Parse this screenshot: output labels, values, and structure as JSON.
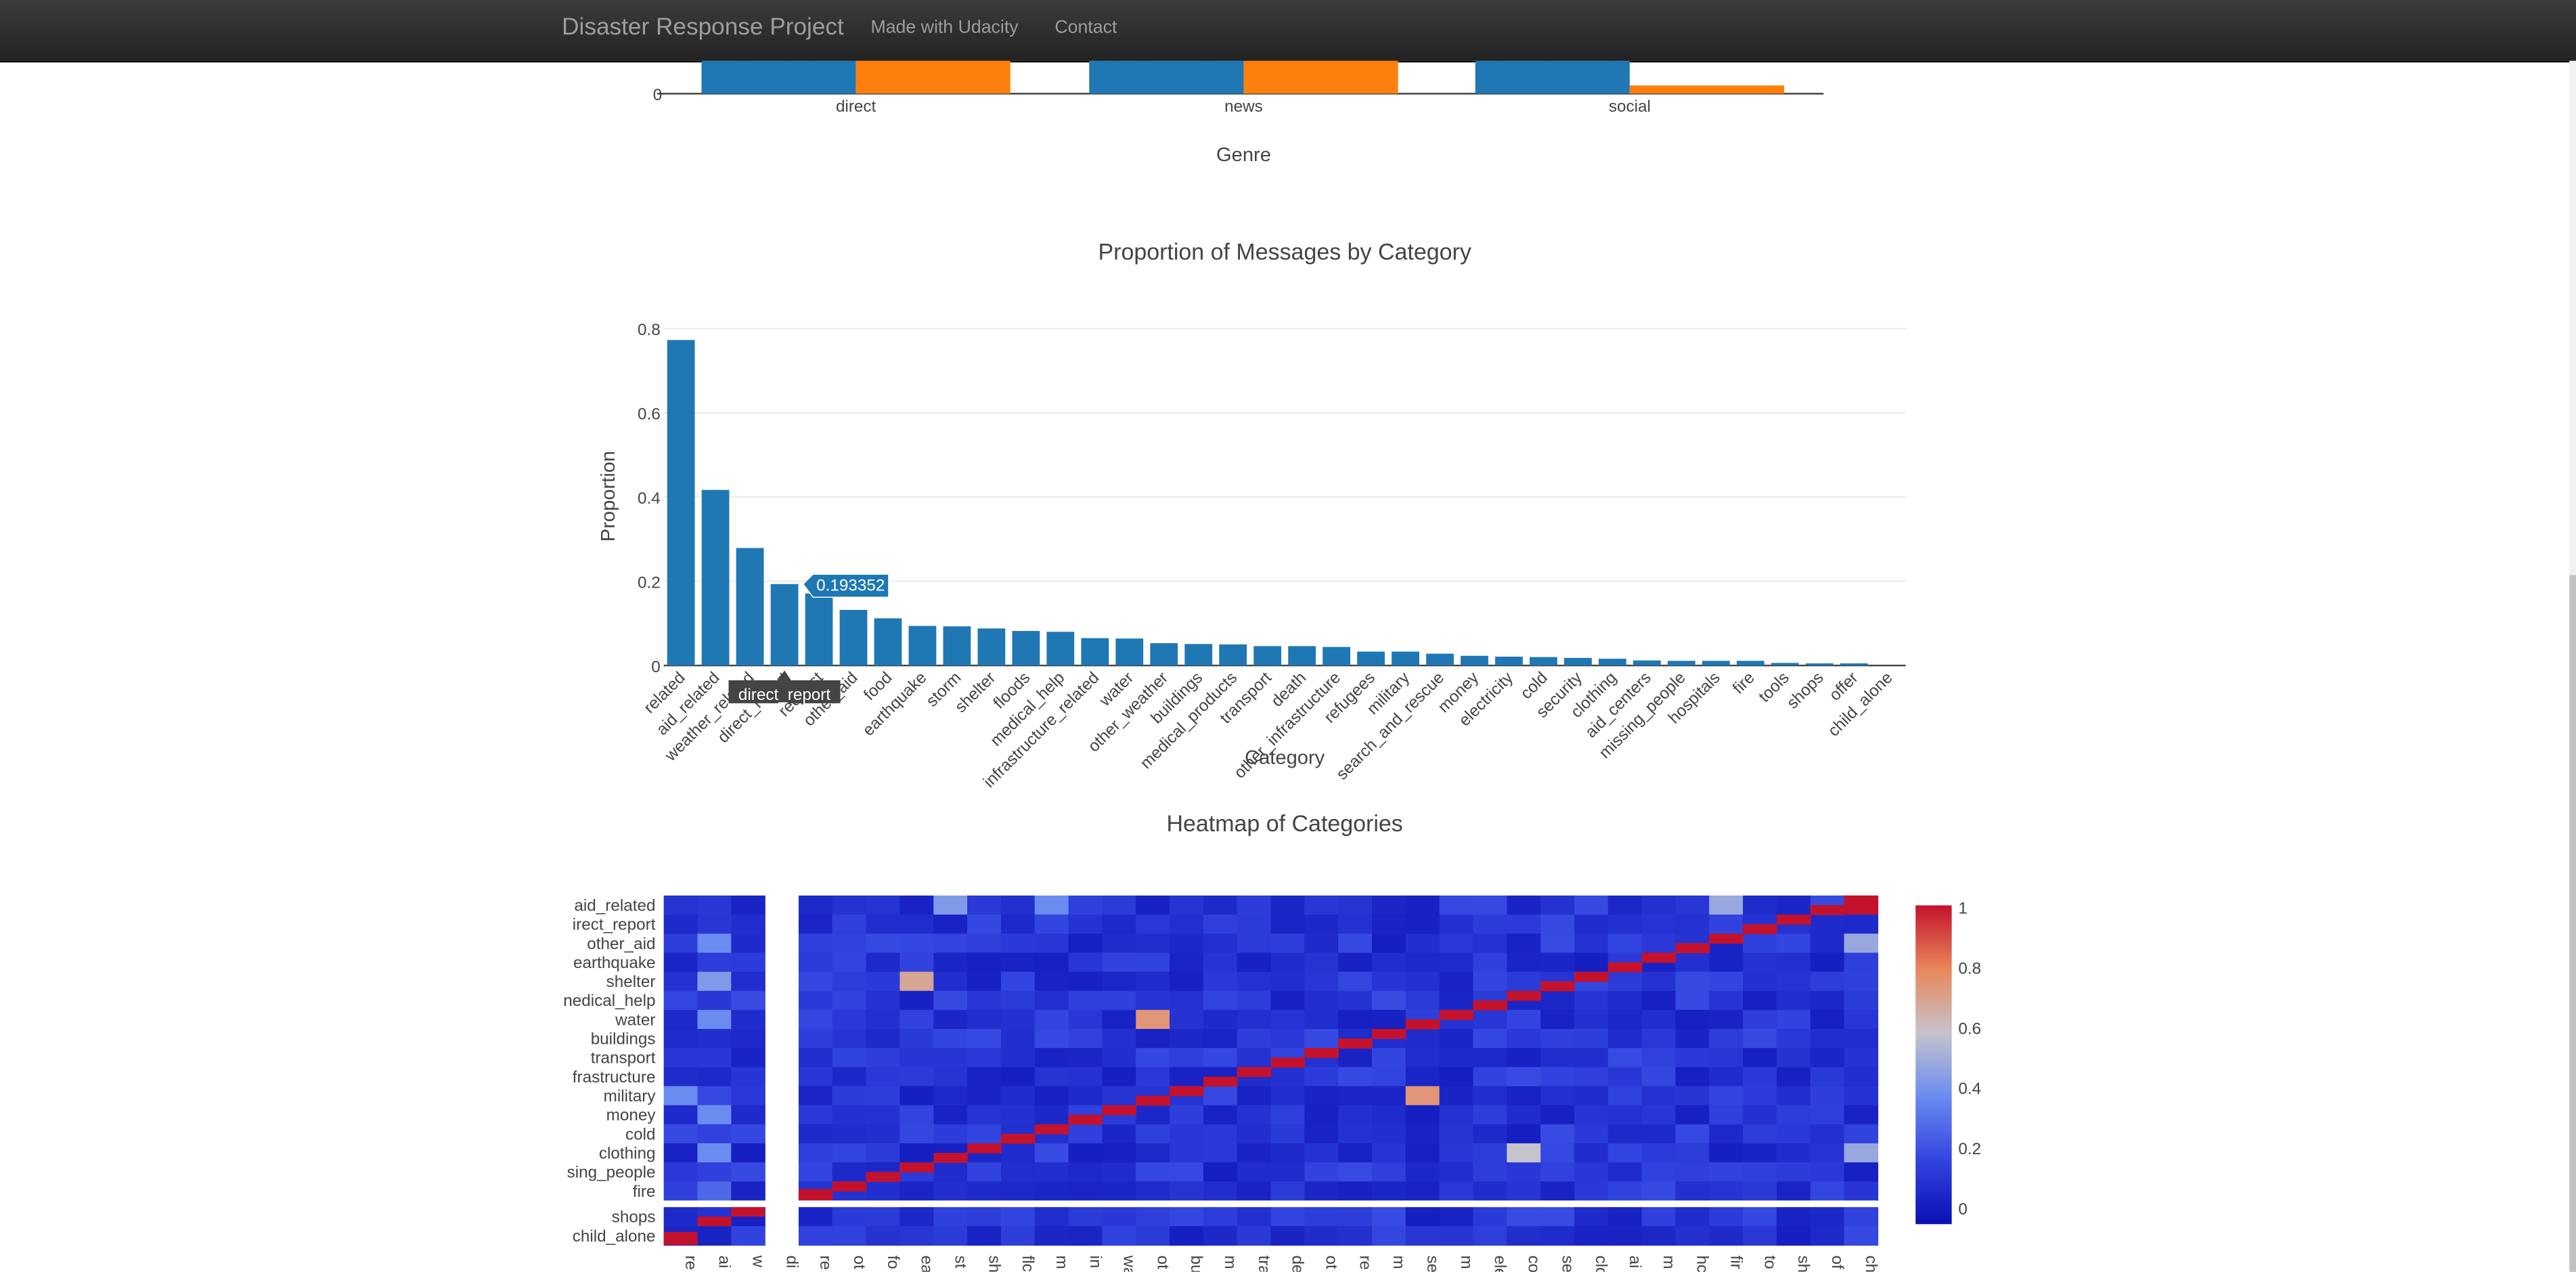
{
  "navbar": {
    "brand": "Disaster Response Project",
    "links": [
      "Made with Udacity",
      "Contact"
    ]
  },
  "chart_data": [
    {
      "type": "bar",
      "categories": [
        "direct",
        "news",
        "social"
      ],
      "xlabel": "Genre",
      "series": [
        {
          "color": "#1f77b4"
        },
        {
          "color": "#ff7f0e",
          "values_note_visible_only_social": ""
        }
      ],
      "y_tick_labels": [
        "0"
      ],
      "partial_view": true
    },
    {
      "type": "bar",
      "title": "Proportion of Messages by Category",
      "xlabel": "Category",
      "ylabel": "Proportion",
      "ylim": [
        0,
        0.8
      ],
      "yticks": [
        0,
        0.2,
        0.4,
        0.6,
        0.8
      ],
      "ytick_labels": [
        "0",
        "0.2",
        "0.4",
        "0.6",
        "0.8"
      ],
      "color": "#1f77b4",
      "categories": [
        "related",
        "aid_related",
        "weather_related",
        "direct_report",
        "request",
        "other_aid",
        "food",
        "earthquake",
        "storm",
        "shelter",
        "floods",
        "medical_help",
        "infrastructure_related",
        "water",
        "other_weather",
        "buildings",
        "medical_products",
        "transport",
        "death",
        "other_infrastructure",
        "refugees",
        "military",
        "search_and_rescue",
        "money",
        "electricity",
        "cold",
        "security",
        "clothing",
        "aid_centers",
        "missing_people",
        "hospitals",
        "fire",
        "tools",
        "shops",
        "offer",
        "child_alone"
      ],
      "tick_labels": [
        "related",
        "aid_related",
        "weather_related",
        "direct_report",
        "request",
        "other_aid",
        "food",
        "earthquake",
        "storm",
        "shelter",
        "floods",
        "medical_help",
        "infrastructure_related",
        "water",
        "other_weather",
        "buildings",
        "medical_products",
        "transport",
        "death",
        "other_infrastructure",
        "refugees",
        "military",
        "search_and_rescue",
        "money",
        "electricity",
        "cold",
        "security",
        "clothing",
        "aid_centers",
        "missing_people",
        "hospitals",
        "fire",
        "tools",
        "shops",
        "offer",
        "child_alone"
      ],
      "values": [
        0.773,
        0.417,
        0.279,
        0.193352,
        0.171,
        0.132,
        0.112,
        0.094,
        0.093,
        0.088,
        0.082,
        0.08,
        0.065,
        0.064,
        0.053,
        0.051,
        0.05,
        0.046,
        0.046,
        0.044,
        0.033,
        0.033,
        0.028,
        0.023,
        0.021,
        0.02,
        0.018,
        0.016,
        0.012,
        0.011,
        0.011,
        0.011,
        0.006,
        0.005,
        0.005,
        0.0
      ],
      "hover": {
        "value": "0.193352",
        "category": "direct_report"
      }
    },
    {
      "type": "heatmap",
      "title": "Heatmap of Categories",
      "y_labels": [
        "aid_related",
        "irect_report",
        "other_aid",
        "earthquake",
        "shelter",
        "nedical_help",
        "water",
        "buildings",
        "transport",
        "frastructure",
        "military",
        "money",
        "cold",
        "clothing",
        "sing_people",
        "fire",
        "shops",
        "child_alone"
      ],
      "x_labels": [
        "re",
        "ai",
        "w",
        "di",
        "re",
        "ot",
        "fo",
        "ea",
        "st",
        "sh",
        "flc",
        "m",
        "in",
        "wa",
        "ot",
        "bu",
        "m",
        "tra",
        "de",
        "ot",
        "re",
        "m",
        "se",
        "m",
        "ele",
        "co",
        "se",
        "clo",
        "ai",
        "m",
        "hc",
        "fir",
        "to",
        "sh",
        "of",
        "ch"
      ],
      "colorbar": {
        "ticks": [
          0,
          0.2,
          0.4,
          0.6,
          0.8,
          1
        ],
        "labels": [
          "0",
          "0.2",
          "0.4",
          "0.6",
          "0.8",
          "1"
        ]
      },
      "colorscale": [
        "#0a0fb4",
        "#3244e0",
        "#6a8cf0",
        "#c6c3cc",
        "#e8875a",
        "#c4122c"
      ]
    }
  ]
}
